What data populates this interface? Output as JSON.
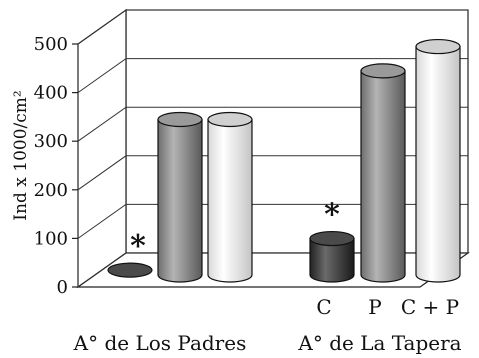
{
  "chart_data": {
    "type": "bar",
    "style": "3d-cylinder",
    "ylabel": "Ind x 1000/cm²",
    "ylim": [
      0,
      500
    ],
    "yticks": [
      0,
      100,
      200,
      300,
      400,
      500
    ],
    "grid": true,
    "legend": "none",
    "groups": [
      {
        "name": "A° de Los Padres",
        "categories": [
          "",
          "",
          ""
        ]
      },
      {
        "name": "A° de La Tapera",
        "categories": [
          "C",
          "P",
          "C + P"
        ]
      }
    ],
    "series": [
      {
        "values": [
          10,
          320,
          320
        ],
        "colors": [
          "#3a3a3a",
          "#8a8a8a",
          "#e6e6e6"
        ]
      },
      {
        "values": [
          75,
          420,
          470
        ],
        "colors": [
          "#3a3a3a",
          "#8a8a8a",
          "#e6e6e6"
        ]
      }
    ],
    "annotations": [
      {
        "text": "*",
        "group": 0,
        "bar": 0
      },
      {
        "text": "*",
        "group": 1,
        "bar": 0
      }
    ]
  }
}
